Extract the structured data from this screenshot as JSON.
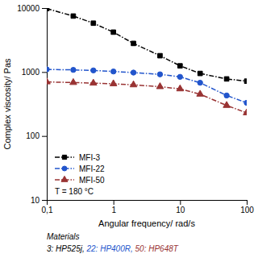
{
  "chart_data": {
    "type": "line",
    "xlabel": "Angular frequency/ rad/s",
    "ylabel": "Complex viscosity/ Pas",
    "log": true,
    "xlim": [
      0.1,
      100
    ],
    "ylim": [
      10,
      10000
    ],
    "xticks": [
      {
        "value": 0.1,
        "label": "0,1"
      },
      1,
      10,
      100
    ],
    "yticks": [
      10,
      100,
      1000,
      10000
    ],
    "legend": "lower left",
    "annotation": "T = 180 °C",
    "footnote": "Materials",
    "footnote_parts": [
      {
        "text": "3: HP525j, ",
        "color": "#000000"
      },
      {
        "text": "22: HP400R, ",
        "color": "#2255cc"
      },
      {
        "text": "50: HP648T",
        "color": "#993333"
      }
    ],
    "x": [
      0.1,
      0.25,
      0.5,
      1.0,
      2.0,
      5.0,
      10.0,
      20.0,
      50.0,
      100.0
    ],
    "series": [
      {
        "name": "MFI-3",
        "color": "#000000",
        "marker": "square",
        "line_style": "dashdot",
        "values": [
          9800,
          7500,
          5800,
          4200,
          2800,
          1800,
          1250,
          950,
          780,
          720
        ]
      },
      {
        "name": "MFI-22",
        "color": "#2255cc",
        "marker": "circle",
        "line_style": "dashdot",
        "values": [
          1100,
          1080,
          1060,
          1020,
          980,
          920,
          840,
          680,
          430,
          330
        ]
      },
      {
        "name": "MFI-50",
        "color": "#993333",
        "marker": "triangle",
        "line_style": "dashdot",
        "values": [
          700,
          685,
          670,
          655,
          630,
          590,
          545,
          450,
          300,
          230
        ]
      }
    ]
  }
}
